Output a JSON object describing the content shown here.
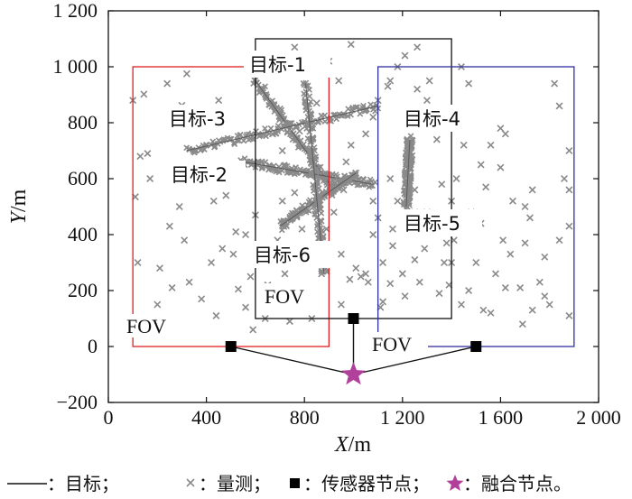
{
  "chart_data": {
    "type": "scatter",
    "xlabel": "X/m",
    "ylabel": "Y/m",
    "xlim": [
      0,
      2000
    ],
    "ylim": [
      -200,
      1200
    ],
    "xticks": [
      0,
      400,
      800,
      1200,
      1600,
      2000
    ],
    "xtick_labels": [
      "0",
      "400",
      "800",
      "1 200",
      "1 600",
      "2 000"
    ],
    "yticks": [
      -200,
      0,
      200,
      400,
      600,
      800,
      1000,
      1200
    ],
    "ytick_labels": [
      "−200",
      "0",
      "200",
      "400",
      "600",
      "800",
      "1 000",
      "1 200"
    ],
    "grid": false,
    "colors": {
      "fov_left": "#e02020",
      "fov_middle": "#111111",
      "fov_right": "#3030a0",
      "measurement": "#8a8a8a",
      "fusion_node": "#b0409a",
      "sensor": "#000000"
    },
    "fov_regions": [
      {
        "label": "FOV",
        "x": [
          100,
          900
        ],
        "y": [
          0,
          1000
        ],
        "color": "#e02020"
      },
      {
        "label": "FOV",
        "x": [
          600,
          1400
        ],
        "y": [
          100,
          1100
        ],
        "color": "#111111"
      },
      {
        "label": "FOV",
        "x": [
          1100,
          1900
        ],
        "y": [
          0,
          1000
        ],
        "color": "#3030a0"
      }
    ],
    "sensor_nodes": [
      {
        "x": 500,
        "y": 0
      },
      {
        "x": 1000,
        "y": 100
      },
      {
        "x": 1500,
        "y": 0
      }
    ],
    "fusion_node": {
      "x": 1000,
      "y": -100
    },
    "targets": [
      {
        "name": "目标-1",
        "start": [
          600,
          950
        ],
        "end": [
          920,
          560
        ]
      },
      {
        "name": "目标-2",
        "start": [
          550,
          660
        ],
        "end": [
          1080,
          580
        ]
      },
      {
        "name": "目标-3",
        "start": [
          320,
          700
        ],
        "end": [
          1100,
          860
        ]
      },
      {
        "name": "目标-4",
        "start": [
          1230,
          740
        ],
        "end": [
          1215,
          500
        ]
      },
      {
        "name": "目标-5",
        "start": [
          700,
          430
        ],
        "end": [
          1010,
          620
        ]
      },
      {
        "name": "目标-6",
        "start": [
          880,
          260
        ],
        "end": [
          805,
          940
        ]
      }
    ],
    "clutter": [
      [
        100,
        880
      ],
      [
        145,
        902
      ],
      [
        110,
        535
      ],
      [
        130,
        680
      ],
      [
        160,
        690
      ],
      [
        170,
        600
      ],
      [
        240,
        940
      ],
      [
        320,
        975
      ],
      [
        300,
        862
      ],
      [
        290,
        500
      ],
      [
        310,
        380
      ],
      [
        270,
        820
      ],
      [
        250,
        430
      ],
      [
        430,
        520
      ],
      [
        465,
        350
      ],
      [
        450,
        880
      ],
      [
        480,
        540
      ],
      [
        530,
        205
      ],
      [
        580,
        250
      ],
      [
        520,
        410
      ],
      [
        510,
        330
      ],
      [
        420,
        300
      ],
      [
        600,
        470
      ],
      [
        560,
        400
      ],
      [
        640,
        100
      ],
      [
        740,
        90
      ],
      [
        760,
        160
      ],
      [
        830,
        180
      ],
      [
        870,
        260
      ],
      [
        890,
        420
      ],
      [
        950,
        330
      ],
      [
        950,
        150
      ],
      [
        985,
        240
      ],
      [
        1050,
        260
      ],
      [
        1080,
        400
      ],
      [
        1010,
        620
      ],
      [
        1010,
        280
      ],
      [
        1030,
        250
      ],
      [
        1060,
        230
      ],
      [
        1120,
        160
      ],
      [
        1150,
        225
      ],
      [
        1200,
        260
      ],
      [
        1250,
        310
      ],
      [
        1270,
        230
      ],
      [
        1300,
        420
      ],
      [
        1300,
        480
      ],
      [
        1310,
        950
      ],
      [
        1300,
        880
      ],
      [
        1340,
        740
      ],
      [
        1370,
        300
      ],
      [
        1380,
        370
      ],
      [
        1390,
        220
      ],
      [
        1410,
        380
      ],
      [
        1440,
        1000
      ],
      [
        1460,
        840
      ],
      [
        1470,
        940
      ],
      [
        1420,
        600
      ],
      [
        1480,
        480
      ],
      [
        1470,
        200
      ],
      [
        1520,
        650
      ],
      [
        1520,
        440
      ],
      [
        1540,
        570
      ],
      [
        1600,
        780
      ],
      [
        1600,
        640
      ],
      [
        1560,
        120
      ],
      [
        1620,
        210
      ],
      [
        1650,
        520
      ],
      [
        1700,
        500
      ],
      [
        1730,
        560
      ],
      [
        1780,
        320
      ],
      [
        1760,
        230
      ],
      [
        1820,
        940
      ],
      [
        1860,
        600
      ],
      [
        1880,
        700
      ],
      [
        1880,
        110
      ],
      [
        1840,
        380
      ],
      [
        1800,
        150
      ],
      [
        1840,
        860
      ],
      [
        1880,
        430
      ],
      [
        1880,
        560
      ],
      [
        1780,
        180
      ],
      [
        1730,
        130
      ],
      [
        1580,
        260
      ],
      [
        1610,
        380
      ],
      [
        1640,
        330
      ],
      [
        1700,
        370
      ],
      [
        1720,
        460
      ],
      [
        1560,
        720
      ],
      [
        1620,
        760
      ],
      [
        1400,
        520
      ],
      [
        1360,
        580
      ],
      [
        1400,
        300
      ],
      [
        1450,
        720
      ],
      [
        1150,
        600
      ],
      [
        1180,
        520
      ],
      [
        1160,
        420
      ],
      [
        1100,
        460
      ],
      [
        1080,
        520
      ],
      [
        1220,
        660
      ],
      [
        1250,
        560
      ],
      [
        1250,
        480
      ],
      [
        1290,
        350
      ],
      [
        1350,
        190
      ],
      [
        1120,
        300
      ],
      [
        1160,
        360
      ],
      [
        1210,
        180
      ],
      [
        1110,
        140
      ],
      [
        710,
        520
      ],
      [
        690,
        380
      ],
      [
        670,
        300
      ],
      [
        650,
        220
      ],
      [
        720,
        260
      ],
      [
        770,
        330
      ],
      [
        790,
        420
      ],
      [
        760,
        550
      ],
      [
        830,
        100
      ],
      [
        900,
        310
      ],
      [
        920,
        480
      ],
      [
        960,
        560
      ],
      [
        970,
        660
      ],
      [
        990,
        720
      ],
      [
        1050,
        760
      ],
      [
        1080,
        820
      ],
      [
        1100,
        880
      ],
      [
        1150,
        950
      ],
      [
        1180,
        1000
      ],
      [
        1260,
        1070
      ],
      [
        1210,
        1040
      ],
      [
        1140,
        930
      ],
      [
        1260,
        920
      ],
      [
        990,
        1080
      ],
      [
        900,
        1020
      ],
      [
        940,
        950
      ],
      [
        850,
        870
      ],
      [
        780,
        770
      ],
      [
        710,
        700
      ],
      [
        650,
        990
      ],
      [
        720,
        1000
      ],
      [
        670,
        760
      ],
      [
        760,
        1070
      ],
      [
        820,
        1000
      ],
      [
        120,
        300
      ],
      [
        210,
        280
      ],
      [
        330,
        230
      ],
      [
        380,
        170
      ],
      [
        260,
        210
      ],
      [
        200,
        150
      ],
      [
        160,
        80
      ],
      [
        440,
        110
      ],
      [
        560,
        140
      ],
      [
        590,
        60
      ],
      [
        1500,
        300
      ],
      [
        1530,
        130
      ],
      [
        1680,
        210
      ],
      [
        1440,
        150
      ],
      [
        1690,
        80
      ]
    ]
  },
  "text": {
    "targets": [
      "目标-1",
      "目标-2",
      "目标-3",
      "目标-4",
      "目标-5",
      "目标-6"
    ],
    "fov": [
      "FOV",
      "FOV",
      "FOV"
    ],
    "legend": [
      {
        "symbol": "line",
        "text": "：目标；"
      },
      {
        "symbol": "cross",
        "text": "：量测；"
      },
      {
        "symbol": "square",
        "text": "：传感器节点；"
      },
      {
        "symbol": "star",
        "text": "：融合节点。"
      }
    ]
  }
}
